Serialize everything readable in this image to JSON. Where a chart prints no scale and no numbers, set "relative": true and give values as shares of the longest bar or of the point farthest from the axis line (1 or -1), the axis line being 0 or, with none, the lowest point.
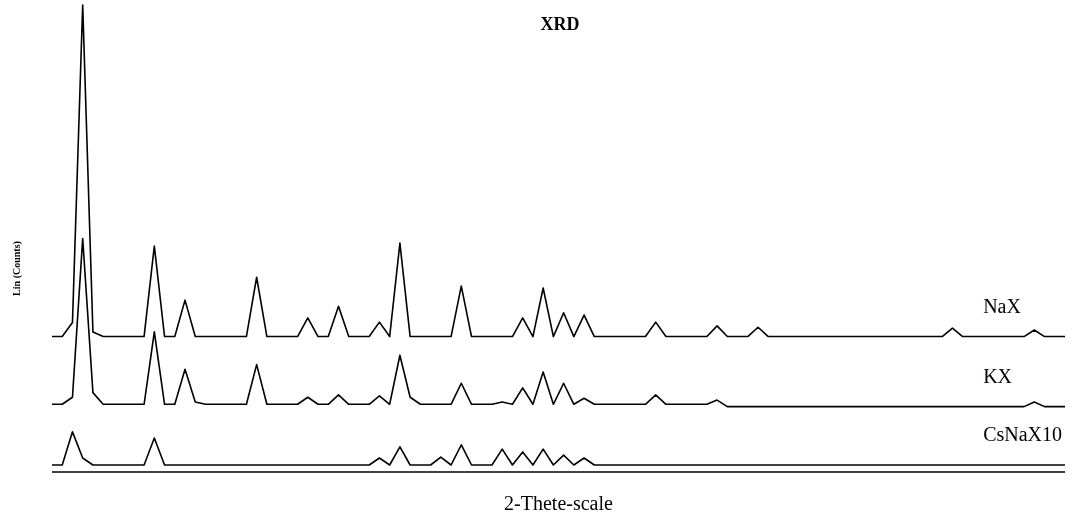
{
  "chart_data": {
    "type": "line",
    "title": "XRD",
    "xlabel": "2-Thete-scale",
    "ylabel": "Lin (Counts)",
    "relative": true,
    "legend": false,
    "marker": "none",
    "line_style": "solid",
    "categories": [
      null,
      null,
      null,
      null,
      null,
      null,
      null,
      null,
      null,
      null,
      null,
      null,
      null,
      null,
      null,
      null,
      null,
      null,
      null,
      null,
      null,
      null,
      null,
      null,
      null,
      null,
      null,
      null,
      null,
      null,
      null,
      null,
      null,
      null,
      null,
      null,
      null,
      null,
      null,
      null,
      null,
      null,
      null,
      null,
      null,
      null,
      null,
      null,
      null,
      null,
      null,
      null,
      null,
      null,
      null,
      null,
      null,
      null,
      null,
      null,
      null,
      null,
      null,
      null,
      null,
      null,
      null,
      null,
      null,
      null,
      null,
      null,
      null,
      null,
      null,
      null,
      null,
      null,
      null,
      null,
      null,
      null,
      null,
      null,
      null,
      null,
      null,
      null,
      null,
      null,
      null,
      null,
      null,
      null,
      null,
      null,
      null,
      null,
      null,
      null
    ],
    "series": [
      {
        "name": "NaX",
        "color": "#000000",
        "values": [
          0.29,
          0.29,
          0.32,
          1.0,
          0.3,
          0.29,
          0.29,
          0.29,
          0.29,
          0.29,
          0.484,
          0.29,
          0.29,
          0.368,
          0.29,
          0.29,
          0.29,
          0.29,
          0.29,
          0.29,
          0.417,
          0.29,
          0.29,
          0.29,
          0.29,
          0.33,
          0.29,
          0.29,
          0.355,
          0.29,
          0.29,
          0.29,
          0.321,
          0.29,
          0.49,
          0.29,
          0.29,
          0.29,
          0.29,
          0.29,
          0.398,
          0.29,
          0.29,
          0.29,
          0.29,
          0.29,
          0.33,
          0.29,
          0.394,
          0.29,
          0.341,
          0.29,
          0.336,
          0.29,
          0.29,
          0.29,
          0.29,
          0.29,
          0.29,
          0.321,
          0.29,
          0.29,
          0.29,
          0.29,
          0.29,
          0.313,
          0.29,
          0.29,
          0.29,
          0.31,
          0.29,
          0.29,
          0.29,
          0.29,
          0.29,
          0.29,
          0.29,
          0.29,
          0.29,
          0.29,
          0.29,
          0.29,
          0.29,
          0.29,
          0.29,
          0.29,
          0.29,
          0.29,
          0.308,
          0.29,
          0.29,
          0.29,
          0.29,
          0.29,
          0.29,
          0.29,
          0.304,
          0.29,
          0.29,
          0.29
        ]
      },
      {
        "name": "KX",
        "color": "#000000",
        "values": [
          0.145,
          0.145,
          0.16,
          0.5,
          0.17,
          0.145,
          0.145,
          0.145,
          0.145,
          0.145,
          0.3,
          0.145,
          0.145,
          0.22,
          0.15,
          0.145,
          0.145,
          0.145,
          0.145,
          0.145,
          0.23,
          0.145,
          0.145,
          0.145,
          0.145,
          0.16,
          0.145,
          0.145,
          0.165,
          0.145,
          0.145,
          0.145,
          0.163,
          0.145,
          0.25,
          0.16,
          0.145,
          0.145,
          0.145,
          0.145,
          0.19,
          0.145,
          0.145,
          0.145,
          0.15,
          0.145,
          0.18,
          0.145,
          0.214,
          0.145,
          0.19,
          0.145,
          0.158,
          0.145,
          0.145,
          0.145,
          0.145,
          0.145,
          0.145,
          0.165,
          0.145,
          0.145,
          0.145,
          0.145,
          0.145,
          0.154,
          0.14,
          0.14,
          0.14,
          0.14,
          0.14,
          0.14,
          0.14,
          0.14,
          0.14,
          0.14,
          0.14,
          0.14,
          0.14,
          0.14,
          0.14,
          0.14,
          0.14,
          0.14,
          0.14,
          0.14,
          0.14,
          0.14,
          0.14,
          0.14,
          0.14,
          0.14,
          0.14,
          0.14,
          0.14,
          0.14,
          0.15,
          0.14,
          0.14,
          0.14
        ]
      },
      {
        "name": "CsNaX10",
        "color": "#000000",
        "values": [
          0.015,
          0.015,
          0.086,
          0.03,
          0.015,
          0.015,
          0.015,
          0.015,
          0.015,
          0.015,
          0.073,
          0.015,
          0.015,
          0.015,
          0.015,
          0.015,
          0.015,
          0.015,
          0.015,
          0.015,
          0.015,
          0.015,
          0.015,
          0.015,
          0.015,
          0.015,
          0.015,
          0.015,
          0.015,
          0.015,
          0.015,
          0.015,
          0.03,
          0.015,
          0.054,
          0.015,
          0.015,
          0.015,
          0.032,
          0.015,
          0.058,
          0.015,
          0.015,
          0.015,
          0.049,
          0.015,
          0.043,
          0.015,
          0.049,
          0.015,
          0.036,
          0.015,
          0.03,
          0.015,
          0.015,
          0.015,
          0.015,
          0.015,
          0.015,
          0.015,
          0.015,
          0.015,
          0.015,
          0.015,
          0.015,
          0.015,
          0.015,
          0.015,
          0.015,
          0.015,
          0.015,
          0.015,
          0.015,
          0.015,
          0.015,
          0.015,
          0.015,
          0.015,
          0.015,
          0.015,
          0.015,
          0.015,
          0.015,
          0.015,
          0.015,
          0.015,
          0.015,
          0.015,
          0.015,
          0.015,
          0.015,
          0.015,
          0.015,
          0.015,
          0.015,
          0.015,
          0.015,
          0.015,
          0.015,
          0.015
        ]
      }
    ]
  }
}
